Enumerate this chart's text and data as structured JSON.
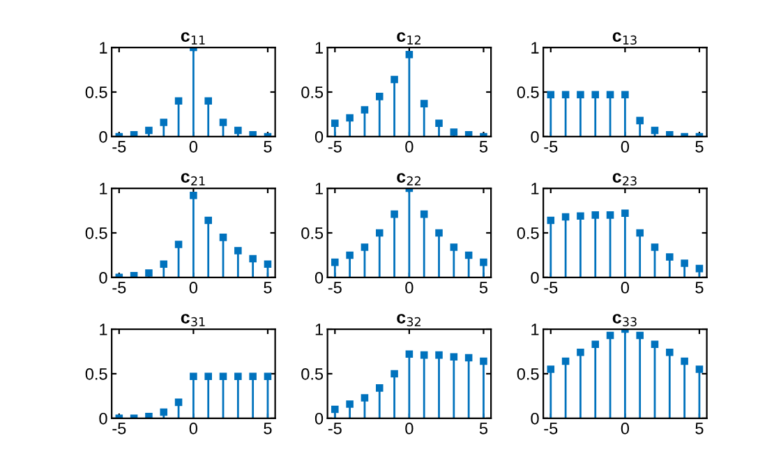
{
  "chart_data": [
    {
      "type": "lollipop",
      "title": "c$_{11}$",
      "x": [
        -5,
        -4,
        -3,
        -2,
        -1,
        0,
        1,
        2,
        3,
        4,
        5
      ],
      "values": [
        0,
        0.02,
        0.07,
        0.16,
        0.4,
        1,
        0.4,
        0.16,
        0.07,
        0.02,
        0
      ],
      "color": "#0072bd",
      "marker": "square",
      "xlim": [
        -5.5,
        5.5
      ],
      "xticks": [
        -5,
        0,
        5
      ],
      "ylim": [
        0,
        1
      ],
      "yticks": [
        0,
        0.5,
        1
      ]
    },
    {
      "type": "lollipop",
      "title": "c$_{12}$",
      "x": [
        -5,
        -4,
        -3,
        -2,
        -1,
        0,
        1,
        2,
        3,
        4,
        5
      ],
      "values": [
        0.15,
        0.21,
        0.3,
        0.45,
        0.64,
        0.92,
        0.37,
        0.15,
        0.05,
        0.02,
        0
      ],
      "color": "#0072bd",
      "marker": "square",
      "xlim": [
        -5.5,
        5.5
      ],
      "xticks": [
        -5,
        0,
        5
      ],
      "ylim": [
        0,
        1
      ],
      "yticks": [
        0,
        0.5,
        1
      ]
    },
    {
      "type": "lollipop",
      "title": "c$_{13}$",
      "x": [
        -5,
        -4,
        -3,
        -2,
        -1,
        0,
        1,
        2,
        3,
        4,
        5
      ],
      "values": [
        0.47,
        0.47,
        0.47,
        0.47,
        0.47,
        0.47,
        0.18,
        0.07,
        0.02,
        0,
        0
      ],
      "color": "#0072bd",
      "marker": "square",
      "xlim": [
        -5.5,
        5.5
      ],
      "xticks": [
        -5,
        0,
        5
      ],
      "ylim": [
        0,
        1
      ],
      "yticks": [
        0,
        0.5,
        1
      ]
    },
    {
      "type": "lollipop",
      "title": "c$_{21}$",
      "x": [
        -5,
        -4,
        -3,
        -2,
        -1,
        0,
        1,
        2,
        3,
        4,
        5
      ],
      "values": [
        0,
        0.02,
        0.05,
        0.15,
        0.37,
        0.92,
        0.64,
        0.45,
        0.3,
        0.21,
        0.15
      ],
      "color": "#0072bd",
      "marker": "square",
      "xlim": [
        -5.5,
        5.5
      ],
      "xticks": [
        -5,
        0,
        5
      ],
      "ylim": [
        0,
        1
      ],
      "yticks": [
        0,
        0.5,
        1
      ]
    },
    {
      "type": "lollipop",
      "title": "c$_{22}$",
      "x": [
        -5,
        -4,
        -3,
        -2,
        -1,
        0,
        1,
        2,
        3,
        4,
        5
      ],
      "values": [
        0.17,
        0.25,
        0.34,
        0.5,
        0.71,
        1,
        0.71,
        0.5,
        0.34,
        0.25,
        0.17
      ],
      "color": "#0072bd",
      "marker": "square",
      "xlim": [
        -5.5,
        5.5
      ],
      "xticks": [
        -5,
        0,
        5
      ],
      "ylim": [
        0,
        1
      ],
      "yticks": [
        0,
        0.5,
        1
      ]
    },
    {
      "type": "lollipop",
      "title": "c$_{23}$",
      "x": [
        -5,
        -4,
        -3,
        -2,
        -1,
        0,
        1,
        2,
        3,
        4,
        5
      ],
      "values": [
        0.64,
        0.68,
        0.69,
        0.7,
        0.7,
        0.72,
        0.5,
        0.34,
        0.23,
        0.16,
        0.1
      ],
      "color": "#0072bd",
      "marker": "square",
      "xlim": [
        -5.5,
        5.5
      ],
      "xticks": [
        -5,
        0,
        5
      ],
      "ylim": [
        0,
        1
      ],
      "yticks": [
        0,
        0.5,
        1
      ]
    },
    {
      "type": "lollipop",
      "title": "c$_{31}$",
      "x": [
        -5,
        -4,
        -3,
        -2,
        -1,
        0,
        1,
        2,
        3,
        4,
        5
      ],
      "values": [
        0,
        0,
        0.02,
        0.07,
        0.18,
        0.47,
        0.47,
        0.47,
        0.47,
        0.47,
        0.47
      ],
      "color": "#0072bd",
      "marker": "square",
      "xlim": [
        -5.5,
        5.5
      ],
      "xticks": [
        -5,
        0,
        5
      ],
      "ylim": [
        0,
        1
      ],
      "yticks": [
        0,
        0.5,
        1
      ]
    },
    {
      "type": "lollipop",
      "title": "c$_{32}$",
      "x": [
        -5,
        -4,
        -3,
        -2,
        -1,
        0,
        1,
        2,
        3,
        4,
        5
      ],
      "values": [
        0.1,
        0.16,
        0.23,
        0.34,
        0.5,
        0.72,
        0.71,
        0.71,
        0.69,
        0.68,
        0.64
      ],
      "color": "#0072bd",
      "marker": "square",
      "xlim": [
        -5.5,
        5.5
      ],
      "xticks": [
        -5,
        0,
        5
      ],
      "ylim": [
        0,
        1
      ],
      "yticks": [
        0,
        0.5,
        1
      ]
    },
    {
      "type": "lollipop",
      "title": "c$_{33}$",
      "x": [
        -5,
        -4,
        -3,
        -2,
        -1,
        0,
        1,
        2,
        3,
        4,
        5
      ],
      "values": [
        0.55,
        0.64,
        0.74,
        0.83,
        0.93,
        1,
        0.93,
        0.83,
        0.74,
        0.64,
        0.55
      ],
      "color": "#0072bd",
      "marker": "square",
      "xlim": [
        -5.5,
        5.5
      ],
      "xticks": [
        -5,
        0,
        5
      ],
      "ylim": [
        0,
        1
      ],
      "yticks": [
        0,
        0.5,
        1
      ]
    }
  ]
}
